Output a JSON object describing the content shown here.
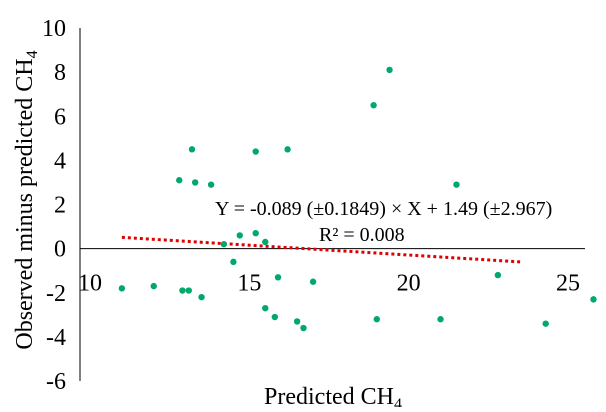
{
  "chart_data": {
    "type": "scatter",
    "title": "",
    "xlabel_main": "Predicted CH",
    "xlabel_sub": "4",
    "ylabel_main": "Observed minus predicted CH",
    "ylabel_sub": "4",
    "xlim": [
      10,
      25
    ],
    "ylim": [
      -6,
      10
    ],
    "x_ticks": [
      10,
      15,
      20,
      25
    ],
    "y_ticks": [
      10,
      8,
      6,
      4,
      2,
      0,
      -2,
      -4,
      -6
    ],
    "grid": false,
    "legend": "none",
    "point_color": "#00a86b",
    "trendline_color": "#e00000",
    "equation_text": "Y = -0.089 (±0.1849) × X + 1.49 (±2.967)",
    "r2_text": "R² = 0.008",
    "trendline": {
      "slope": -0.089,
      "intercept": 1.49,
      "x_range": [
        11,
        23.5
      ]
    },
    "points": [
      {
        "x": 11.0,
        "y": -1.8
      },
      {
        "x": 12.0,
        "y": -1.7
      },
      {
        "x": 12.8,
        "y": 3.1
      },
      {
        "x": 12.9,
        "y": -1.9
      },
      {
        "x": 13.1,
        "y": -1.9
      },
      {
        "x": 13.2,
        "y": 4.5
      },
      {
        "x": 13.3,
        "y": 3.0
      },
      {
        "x": 13.5,
        "y": -2.2
      },
      {
        "x": 13.8,
        "y": 2.9
      },
      {
        "x": 14.2,
        "y": 0.2
      },
      {
        "x": 14.5,
        "y": -0.6
      },
      {
        "x": 14.7,
        "y": 0.6
      },
      {
        "x": 15.2,
        "y": 4.4
      },
      {
        "x": 15.2,
        "y": 0.7
      },
      {
        "x": 15.5,
        "y": 0.3
      },
      {
        "x": 15.5,
        "y": -2.7
      },
      {
        "x": 15.8,
        "y": -3.1
      },
      {
        "x": 15.9,
        "y": -1.3
      },
      {
        "x": 16.2,
        "y": 4.5
      },
      {
        "x": 16.5,
        "y": -3.3
      },
      {
        "x": 16.7,
        "y": -3.6
      },
      {
        "x": 17.0,
        "y": -1.5
      },
      {
        "x": 18.9,
        "y": 6.5
      },
      {
        "x": 19.0,
        "y": -3.2
      },
      {
        "x": 19.4,
        "y": 8.1
      },
      {
        "x": 21.0,
        "y": -3.2
      },
      {
        "x": 21.5,
        "y": 2.9
      },
      {
        "x": 22.8,
        "y": -1.2
      },
      {
        "x": 24.3,
        "y": -3.4
      },
      {
        "x": 25.8,
        "y": -2.3
      }
    ]
  }
}
